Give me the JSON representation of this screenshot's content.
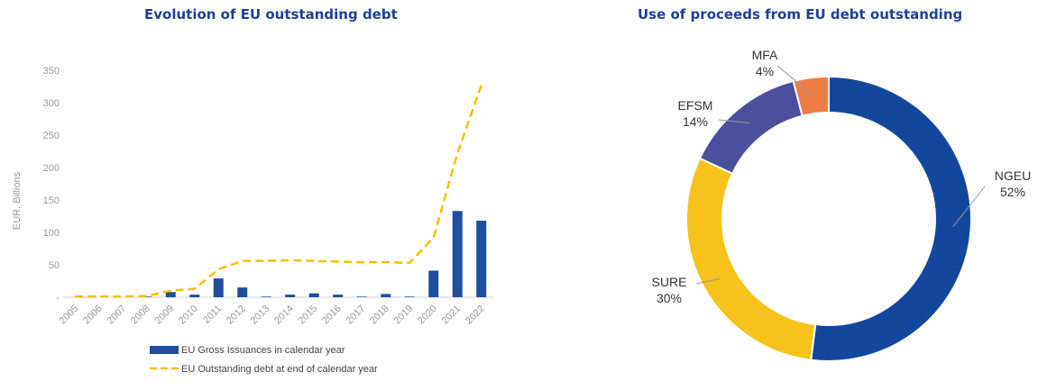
{
  "colors": {
    "title": "#1f3f9a",
    "bar": "#1f4e9c",
    "line": "#f5c000",
    "axis_text": "#9a9a9a",
    "axis_line": "#d0d0d0",
    "slice_ngeu": "#13479c",
    "slice_sure": "#f7c21c",
    "slice_efsm": "#4b4f9e",
    "slice_mfa": "#ee7d45",
    "label_text": "#333333",
    "leader_line": "#9a9a9a"
  },
  "chart_data": [
    {
      "type": "bar",
      "title": "Evolution of EU outstanding debt",
      "xlabel": "",
      "ylabel": "EUR, Billions",
      "ylim": [
        0,
        350
      ],
      "yticks": [
        "-",
        "50",
        "100",
        "150",
        "200",
        "250",
        "300",
        "350"
      ],
      "ytick_values": [
        0,
        50,
        100,
        150,
        200,
        250,
        300,
        350
      ],
      "categories": [
        "2005",
        "2006",
        "2007",
        "2008",
        "2009",
        "2010",
        "2011",
        "2012",
        "2013",
        "2014",
        "2015",
        "2016",
        "2017",
        "2018",
        "2019",
        "2020",
        "2021",
        "2022"
      ],
      "series": [
        {
          "name": "EU Gross Issuances in calendar year",
          "kind": "bar",
          "values": [
            0,
            0,
            0,
            1,
            8,
            4,
            29,
            15,
            1,
            4,
            6,
            4,
            1,
            5,
            1,
            41,
            133,
            118
          ]
        },
        {
          "name": "EU Outstanding debt at end of calendar year",
          "kind": "line-dashed",
          "values": [
            1,
            1,
            1,
            2,
            10,
            13,
            43,
            56,
            56,
            57,
            56,
            55,
            54,
            54,
            53,
            92,
            222,
            327
          ]
        }
      ],
      "grid": false,
      "legend": "bottom"
    },
    {
      "type": "pie",
      "title": "Use of proceeds from EU debt outstanding",
      "donut": true,
      "slices": [
        {
          "label": "NGEU",
          "value": 52,
          "value_label": "52%",
          "color_key": "slice_ngeu"
        },
        {
          "label": "SURE",
          "value": 30,
          "value_label": "30%",
          "color_key": "slice_sure"
        },
        {
          "label": "EFSM",
          "value": 14,
          "value_label": "14%",
          "color_key": "slice_efsm"
        },
        {
          "label": "MFA",
          "value": 4,
          "value_label": "4%",
          "color_key": "slice_mfa"
        }
      ],
      "legend": "none"
    }
  ]
}
